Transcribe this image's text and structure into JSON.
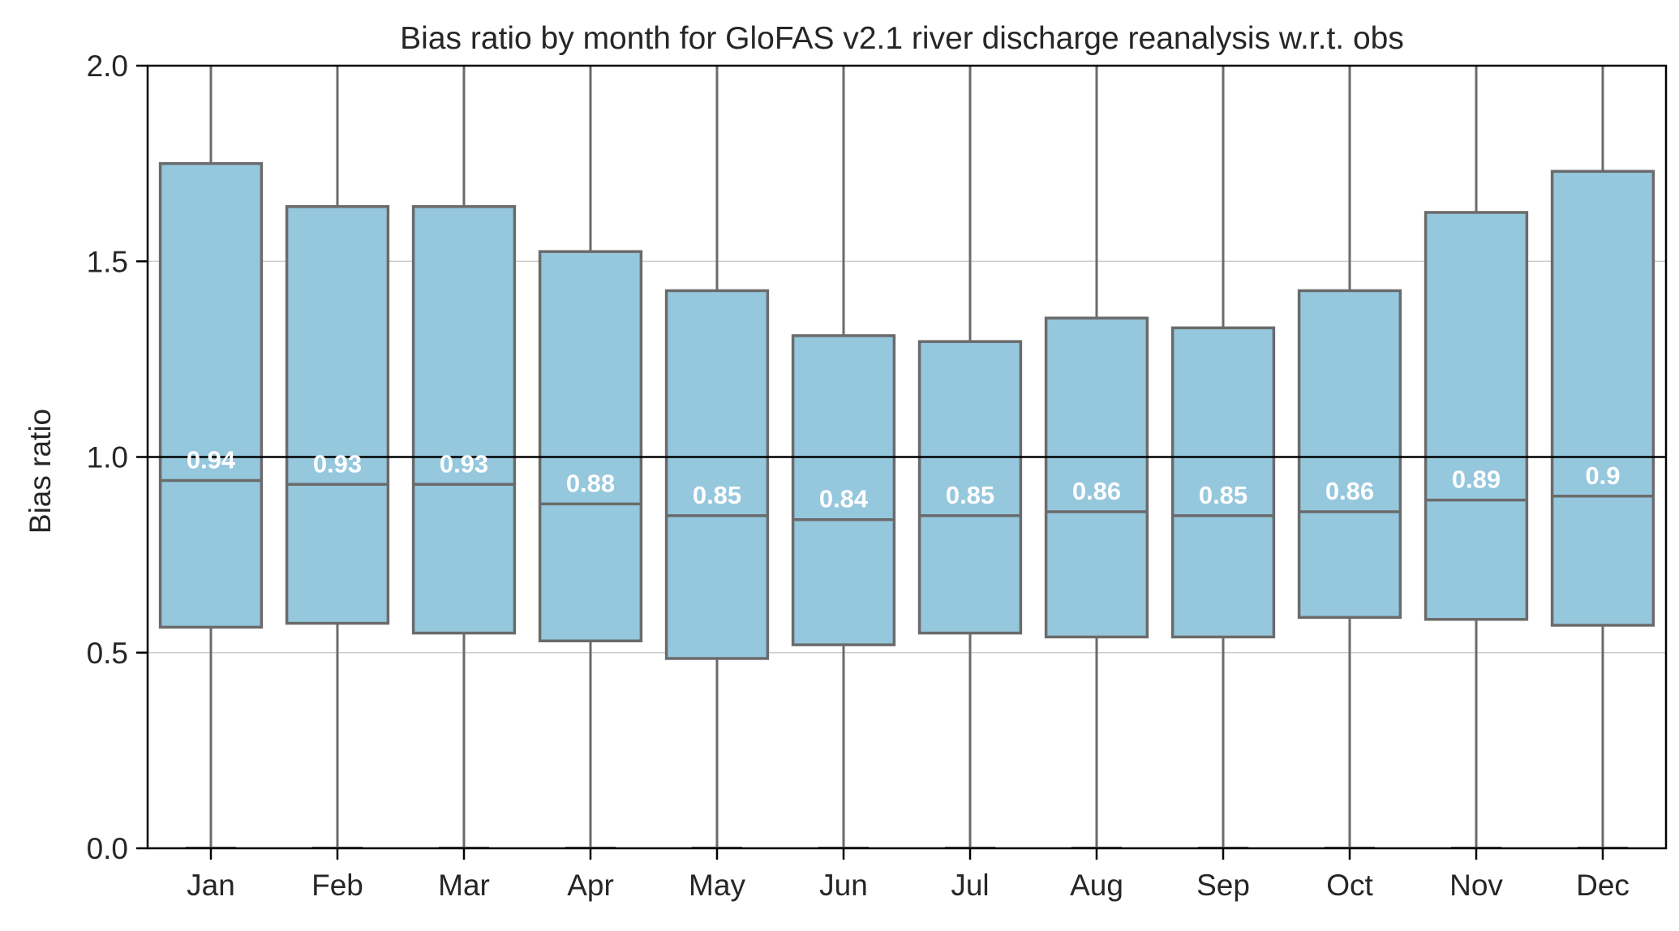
{
  "chart_data": {
    "type": "box",
    "title": "Bias ratio by month for GloFAS v2.1 river discharge reanalysis w.r.t. obs",
    "xlabel": "",
    "ylabel": "Bias ratio",
    "ylim": [
      0,
      2.0
    ],
    "yticks": [
      "0.0",
      "0.5",
      "1.0",
      "1.5",
      "2.0"
    ],
    "reference_line": 1.0,
    "grid": "horizontal",
    "colors": {
      "box_fill": "#95c7dd",
      "box_edge": "#6b6b6b",
      "reference_line": "#000000",
      "grid": "#cccccc",
      "median_label": "#ffffff"
    },
    "categories": [
      "Jan",
      "Feb",
      "Mar",
      "Apr",
      "May",
      "Jun",
      "Jul",
      "Aug",
      "Sep",
      "Oct",
      "Nov",
      "Dec"
    ],
    "boxes": [
      {
        "month": "Jan",
        "whisker_low": 0.0,
        "q1": 0.565,
        "median": 0.94,
        "q3": 1.75,
        "whisker_high": 2.0,
        "label": "0.94"
      },
      {
        "month": "Feb",
        "whisker_low": 0.0,
        "q1": 0.575,
        "median": 0.93,
        "q3": 1.64,
        "whisker_high": 2.0,
        "label": "0.93"
      },
      {
        "month": "Mar",
        "whisker_low": 0.0,
        "q1": 0.55,
        "median": 0.93,
        "q3": 1.64,
        "whisker_high": 2.0,
        "label": "0.93"
      },
      {
        "month": "Apr",
        "whisker_low": 0.0,
        "q1": 0.53,
        "median": 0.88,
        "q3": 1.525,
        "whisker_high": 2.0,
        "label": "0.88"
      },
      {
        "month": "May",
        "whisker_low": 0.0,
        "q1": 0.485,
        "median": 0.85,
        "q3": 1.425,
        "whisker_high": 2.0,
        "label": "0.85"
      },
      {
        "month": "Jun",
        "whisker_low": 0.0,
        "q1": 0.52,
        "median": 0.84,
        "q3": 1.31,
        "whisker_high": 2.0,
        "label": "0.84"
      },
      {
        "month": "Jul",
        "whisker_low": 0.0,
        "q1": 0.55,
        "median": 0.85,
        "q3": 1.295,
        "whisker_high": 2.0,
        "label": "0.85"
      },
      {
        "month": "Aug",
        "whisker_low": 0.0,
        "q1": 0.54,
        "median": 0.86,
        "q3": 1.355,
        "whisker_high": 2.0,
        "label": "0.86"
      },
      {
        "month": "Sep",
        "whisker_low": 0.0,
        "q1": 0.54,
        "median": 0.85,
        "q3": 1.33,
        "whisker_high": 2.0,
        "label": "0.85"
      },
      {
        "month": "Oct",
        "whisker_low": 0.0,
        "q1": 0.59,
        "median": 0.86,
        "q3": 1.425,
        "whisker_high": 2.0,
        "label": "0.86"
      },
      {
        "month": "Nov",
        "whisker_low": 0.0,
        "q1": 0.585,
        "median": 0.89,
        "q3": 1.625,
        "whisker_high": 2.0,
        "label": "0.89"
      },
      {
        "month": "Dec",
        "whisker_low": 0.0,
        "q1": 0.57,
        "median": 0.9,
        "q3": 1.73,
        "whisker_high": 2.0,
        "label": "0.9"
      }
    ]
  }
}
